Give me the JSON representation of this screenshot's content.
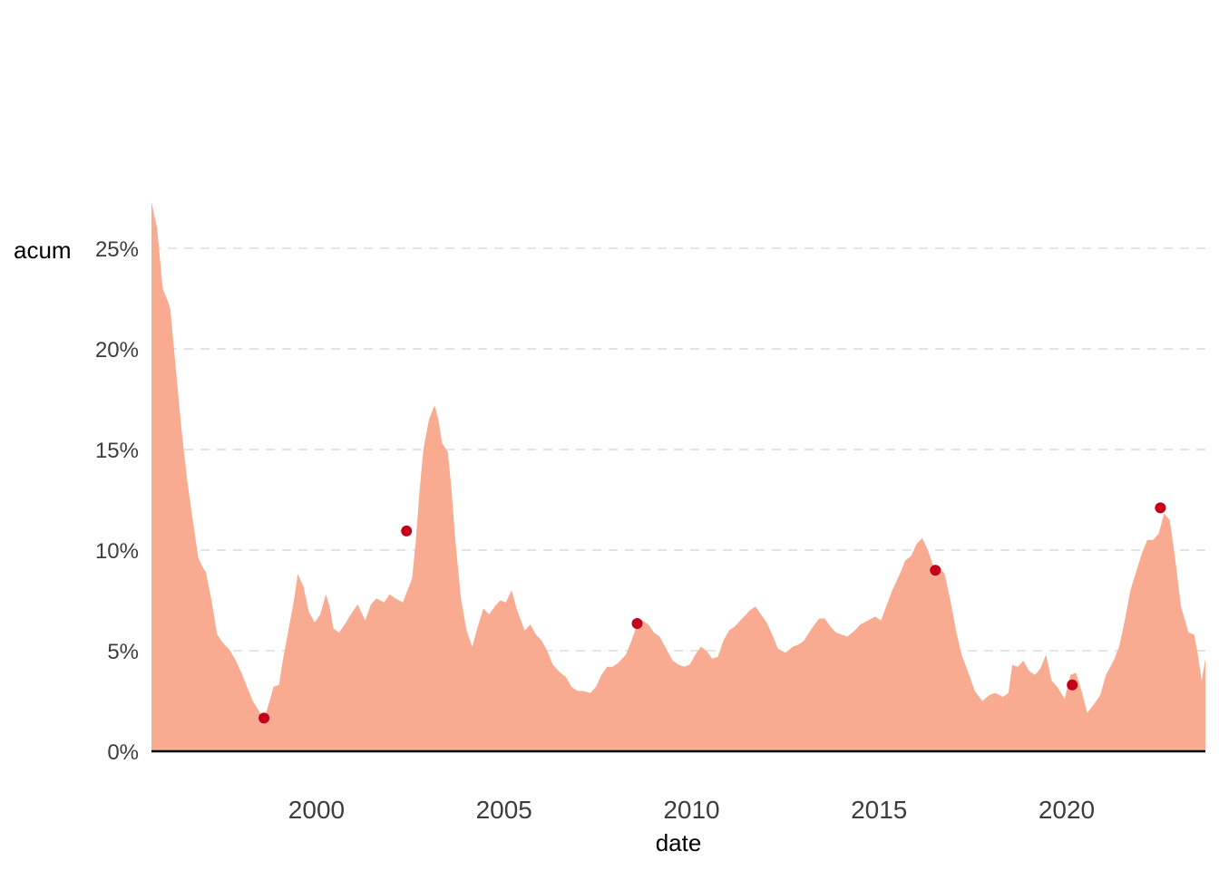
{
  "chart_data": {
    "type": "area",
    "title": "",
    "xlabel": "date",
    "ylabel": "acum",
    "x_ticks": [
      "2000",
      "2005",
      "2010",
      "2015",
      "2020"
    ],
    "y_ticks": [
      "0%",
      "5%",
      "10%",
      "15%",
      "20%",
      "25%"
    ],
    "xlim": [
      1995.6,
      2023.7
    ],
    "ylim": [
      0,
      27.5
    ],
    "grid": "horizontal dashed",
    "area_color": "#f8ab90",
    "point_color": "#c4001a",
    "series": [
      {
        "values": [
          [
            1995.6,
            27.3
          ],
          [
            1995.75,
            26.0
          ],
          [
            1995.9,
            23.0
          ],
          [
            1996.05,
            22.3
          ],
          [
            1996.1,
            22.0
          ],
          [
            1996.25,
            19.0
          ],
          [
            1996.4,
            16.0
          ],
          [
            1996.55,
            13.5
          ],
          [
            1996.7,
            11.5
          ],
          [
            1996.85,
            9.6
          ],
          [
            1996.95,
            9.2
          ],
          [
            1997.05,
            8.9
          ],
          [
            1997.2,
            7.5
          ],
          [
            1997.35,
            5.8
          ],
          [
            1997.5,
            5.4
          ],
          [
            1997.7,
            5.0
          ],
          [
            1997.85,
            4.5
          ],
          [
            1998.0,
            3.9
          ],
          [
            1998.15,
            3.2
          ],
          [
            1998.3,
            2.5
          ],
          [
            1998.5,
            1.9
          ],
          [
            1998.6,
            1.6
          ],
          [
            1998.75,
            2.5
          ],
          [
            1998.85,
            3.2
          ],
          [
            1999.0,
            3.3
          ],
          [
            1999.1,
            4.5
          ],
          [
            1999.25,
            6.0
          ],
          [
            1999.4,
            7.5
          ],
          [
            1999.5,
            8.8
          ],
          [
            1999.65,
            8.2
          ],
          [
            1999.8,
            6.9
          ],
          [
            1999.95,
            6.4
          ],
          [
            2000.1,
            6.8
          ],
          [
            2000.25,
            7.8
          ],
          [
            2000.35,
            7.2
          ],
          [
            2000.45,
            6.1
          ],
          [
            2000.6,
            5.9
          ],
          [
            2000.75,
            6.3
          ],
          [
            2000.95,
            6.9
          ],
          [
            2001.1,
            7.3
          ],
          [
            2001.3,
            6.5
          ],
          [
            2001.45,
            7.3
          ],
          [
            2001.6,
            7.6
          ],
          [
            2001.8,
            7.4
          ],
          [
            2001.95,
            7.8
          ],
          [
            2002.1,
            7.6
          ],
          [
            2002.3,
            7.4
          ],
          [
            2002.55,
            8.6
          ],
          [
            2002.65,
            10.5
          ],
          [
            2002.75,
            13.0
          ],
          [
            2002.85,
            15.0
          ],
          [
            2003.0,
            16.5
          ],
          [
            2003.15,
            17.2
          ],
          [
            2003.25,
            16.5
          ],
          [
            2003.35,
            15.3
          ],
          [
            2003.5,
            14.9
          ],
          [
            2003.6,
            13.0
          ],
          [
            2003.7,
            10.5
          ],
          [
            2003.85,
            7.6
          ],
          [
            2004.0,
            6.0
          ],
          [
            2004.15,
            5.2
          ],
          [
            2004.3,
            6.2
          ],
          [
            2004.45,
            7.1
          ],
          [
            2004.6,
            6.8
          ],
          [
            2004.75,
            7.2
          ],
          [
            2004.9,
            7.5
          ],
          [
            2005.05,
            7.4
          ],
          [
            2005.2,
            8.0
          ],
          [
            2005.35,
            7.0
          ],
          [
            2005.55,
            6.0
          ],
          [
            2005.7,
            6.3
          ],
          [
            2005.85,
            5.8
          ],
          [
            2006.0,
            5.5
          ],
          [
            2006.15,
            5.0
          ],
          [
            2006.3,
            4.3
          ],
          [
            2006.5,
            3.9
          ],
          [
            2006.65,
            3.7
          ],
          [
            2006.8,
            3.2
          ],
          [
            2006.95,
            3.0
          ],
          [
            2007.1,
            3.0
          ],
          [
            2007.3,
            2.9
          ],
          [
            2007.45,
            3.2
          ],
          [
            2007.6,
            3.8
          ],
          [
            2007.75,
            4.2
          ],
          [
            2007.9,
            4.2
          ],
          [
            2008.05,
            4.4
          ],
          [
            2008.25,
            4.8
          ],
          [
            2008.4,
            5.5
          ],
          [
            2008.55,
            6.3
          ],
          [
            2008.7,
            6.5
          ],
          [
            2008.85,
            6.3
          ],
          [
            2009.0,
            5.9
          ],
          [
            2009.15,
            5.7
          ],
          [
            2009.35,
            5.0
          ],
          [
            2009.5,
            4.5
          ],
          [
            2009.65,
            4.3
          ],
          [
            2009.8,
            4.2
          ],
          [
            2009.95,
            4.3
          ],
          [
            2010.1,
            4.8
          ],
          [
            2010.25,
            5.2
          ],
          [
            2010.4,
            5.0
          ],
          [
            2010.55,
            4.6
          ],
          [
            2010.7,
            4.7
          ],
          [
            2010.85,
            5.5
          ],
          [
            2011.0,
            6.0
          ],
          [
            2011.15,
            6.2
          ],
          [
            2011.35,
            6.6
          ],
          [
            2011.55,
            7.0
          ],
          [
            2011.7,
            7.2
          ],
          [
            2011.85,
            6.8
          ],
          [
            2012.0,
            6.4
          ],
          [
            2012.15,
            5.8
          ],
          [
            2012.3,
            5.1
          ],
          [
            2012.5,
            4.9
          ],
          [
            2012.7,
            5.2
          ],
          [
            2012.85,
            5.3
          ],
          [
            2013.0,
            5.5
          ],
          [
            2013.2,
            6.1
          ],
          [
            2013.4,
            6.6
          ],
          [
            2013.55,
            6.6
          ],
          [
            2013.7,
            6.2
          ],
          [
            2013.85,
            5.9
          ],
          [
            2014.0,
            5.8
          ],
          [
            2014.15,
            5.7
          ],
          [
            2014.35,
            6.0
          ],
          [
            2014.5,
            6.3
          ],
          [
            2014.7,
            6.5
          ],
          [
            2014.9,
            6.7
          ],
          [
            2015.05,
            6.5
          ],
          [
            2015.15,
            7.0
          ],
          [
            2015.35,
            8.0
          ],
          [
            2015.55,
            8.8
          ],
          [
            2015.7,
            9.5
          ],
          [
            2015.85,
            9.7
          ],
          [
            2016.0,
            10.3
          ],
          [
            2016.15,
            10.6
          ],
          [
            2016.3,
            10.0
          ],
          [
            2016.45,
            9.2
          ],
          [
            2016.6,
            9.2
          ],
          [
            2016.75,
            8.8
          ],
          [
            2016.9,
            7.5
          ],
          [
            2017.05,
            6.0
          ],
          [
            2017.2,
            4.8
          ],
          [
            2017.4,
            3.8
          ],
          [
            2017.55,
            3.0
          ],
          [
            2017.75,
            2.5
          ],
          [
            2017.95,
            2.8
          ],
          [
            2018.1,
            2.9
          ],
          [
            2018.3,
            2.7
          ],
          [
            2018.45,
            2.9
          ],
          [
            2018.55,
            4.3
          ],
          [
            2018.7,
            4.2
          ],
          [
            2018.85,
            4.5
          ],
          [
            2019.0,
            4.0
          ],
          [
            2019.15,
            3.8
          ],
          [
            2019.3,
            4.1
          ],
          [
            2019.45,
            4.8
          ],
          [
            2019.6,
            3.5
          ],
          [
            2019.75,
            3.2
          ],
          [
            2019.95,
            2.6
          ],
          [
            2020.1,
            3.8
          ],
          [
            2020.25,
            3.9
          ],
          [
            2020.4,
            3.0
          ],
          [
            2020.55,
            1.9
          ],
          [
            2020.75,
            2.4
          ],
          [
            2020.9,
            2.8
          ],
          [
            2021.05,
            3.8
          ],
          [
            2021.25,
            4.5
          ],
          [
            2021.4,
            5.2
          ],
          [
            2021.55,
            6.5
          ],
          [
            2021.7,
            8.0
          ],
          [
            2021.85,
            8.9
          ],
          [
            2022.0,
            9.8
          ],
          [
            2022.15,
            10.5
          ],
          [
            2022.3,
            10.5
          ],
          [
            2022.45,
            10.8
          ],
          [
            2022.6,
            11.8
          ],
          [
            2022.75,
            11.5
          ],
          [
            2022.9,
            9.5
          ],
          [
            2023.05,
            7.2
          ],
          [
            2023.25,
            5.9
          ],
          [
            2023.4,
            5.8
          ],
          [
            2023.5,
            4.8
          ],
          [
            2023.6,
            3.5
          ],
          [
            2023.7,
            4.6
          ]
        ]
      }
    ],
    "points": [
      {
        "x": 1998.6,
        "y": 1.65
      },
      {
        "x": 2002.4,
        "y": 10.95
      },
      {
        "x": 2008.55,
        "y": 6.35
      },
      {
        "x": 2016.5,
        "y": 9.0
      },
      {
        "x": 2020.15,
        "y": 3.3
      },
      {
        "x": 2022.5,
        "y": 12.1
      }
    ]
  }
}
